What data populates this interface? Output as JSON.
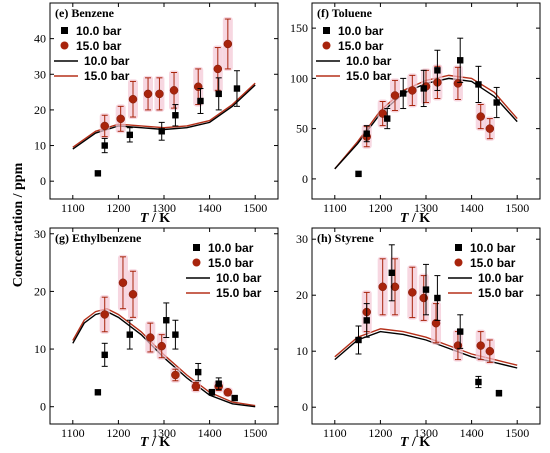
{
  "figure": {
    "ylabel": "Concentration / ppm",
    "xlabel_italic": "T",
    "xlabel_unit": " / K"
  },
  "colors": {
    "exp_10": "#000000",
    "exp_15": "#a8240c",
    "model_10": "#000000",
    "model_15": "#b5301a",
    "glow": "#f4c6d4"
  },
  "chart_data": [
    {
      "id": "benzene",
      "type": "scatter",
      "title": "(e) Benzene",
      "xlim": [
        1050,
        1550
      ],
      "ylim": [
        -5,
        50
      ],
      "xticks": [
        1100,
        1200,
        1300,
        1400,
        1500
      ],
      "yticks": [
        0,
        10,
        20,
        30,
        40
      ],
      "legend": [
        "10.0 bar",
        "15.0 bar",
        "10.0 bar",
        "15.0 bar"
      ],
      "exp_10bar": [
        {
          "x": 1155,
          "y": 2.2,
          "err": 0
        },
        {
          "x": 1170,
          "y": 10,
          "err": 2
        },
        {
          "x": 1225,
          "y": 13,
          "err": 2
        },
        {
          "x": 1295,
          "y": 14,
          "err": 2.5
        },
        {
          "x": 1325,
          "y": 18.5,
          "err": 3
        },
        {
          "x": 1380,
          "y": 22.5,
          "err": 3.5
        },
        {
          "x": 1420,
          "y": 24.5,
          "err": 4.5
        },
        {
          "x": 1460,
          "y": 26,
          "err": 5
        }
      ],
      "exp_15bar": [
        {
          "x": 1170,
          "y": 15.5,
          "err": 3
        },
        {
          "x": 1205,
          "y": 17.5,
          "err": 3.5
        },
        {
          "x": 1232,
          "y": 23,
          "err": 5
        },
        {
          "x": 1265,
          "y": 24.5,
          "err": 4.5
        },
        {
          "x": 1290,
          "y": 24.5,
          "err": 4.5
        },
        {
          "x": 1322,
          "y": 25.5,
          "err": 5
        },
        {
          "x": 1375,
          "y": 26.5,
          "err": 5
        },
        {
          "x": 1418,
          "y": 31.5,
          "err": 6
        },
        {
          "x": 1440,
          "y": 38.5,
          "err": 7
        }
      ],
      "model_10bar": {
        "x": [
          1100,
          1150,
          1200,
          1250,
          1300,
          1350,
          1400,
          1450,
          1500
        ],
        "y": [
          9,
          13.5,
          15.5,
          15,
          14.5,
          15,
          16.5,
          21,
          27
        ]
      },
      "model_15bar": {
        "x": [
          1100,
          1150,
          1200,
          1250,
          1300,
          1350,
          1400,
          1450,
          1500
        ],
        "y": [
          9.5,
          14,
          16,
          15.5,
          15,
          15.5,
          17,
          21.5,
          27.5
        ]
      }
    },
    {
      "id": "toluene",
      "type": "scatter",
      "title": "(f) Toluene",
      "xlim": [
        1050,
        1550
      ],
      "ylim": [
        -20,
        175
      ],
      "xticks": [
        1100,
        1200,
        1300,
        1400,
        1500
      ],
      "yticks": [
        0,
        50,
        100,
        150
      ],
      "legend": [
        "10.0 bar",
        "15.0 bar",
        "10.0 bar",
        "15.0 bar"
      ],
      "exp_10bar": [
        {
          "x": 1152,
          "y": 5,
          "err": 0
        },
        {
          "x": 1170,
          "y": 45,
          "err": 8
        },
        {
          "x": 1215,
          "y": 60,
          "err": 10
        },
        {
          "x": 1250,
          "y": 85,
          "err": 15
        },
        {
          "x": 1295,
          "y": 90,
          "err": 18
        },
        {
          "x": 1325,
          "y": 108,
          "err": 20
        },
        {
          "x": 1375,
          "y": 118,
          "err": 22
        },
        {
          "x": 1415,
          "y": 94,
          "err": 18
        },
        {
          "x": 1455,
          "y": 76,
          "err": 15
        }
      ],
      "exp_15bar": [
        {
          "x": 1170,
          "y": 42,
          "err": 10
        },
        {
          "x": 1205,
          "y": 65,
          "err": 12
        },
        {
          "x": 1232,
          "y": 83,
          "err": 15
        },
        {
          "x": 1270,
          "y": 88,
          "err": 15
        },
        {
          "x": 1300,
          "y": 92,
          "err": 16
        },
        {
          "x": 1325,
          "y": 96,
          "err": 16
        },
        {
          "x": 1370,
          "y": 95,
          "err": 16
        },
        {
          "x": 1420,
          "y": 62,
          "err": 12
        },
        {
          "x": 1440,
          "y": 50,
          "err": 10
        }
      ],
      "model_10bar": {
        "x": [
          1100,
          1150,
          1200,
          1250,
          1300,
          1350,
          1400,
          1450,
          1500
        ],
        "y": [
          10,
          35,
          65,
          85,
          95,
          100,
          97,
          82,
          57
        ]
      },
      "model_15bar": {
        "x": [
          1100,
          1150,
          1200,
          1250,
          1300,
          1350,
          1400,
          1450,
          1500
        ],
        "y": [
          10,
          37,
          68,
          88,
          98,
          103,
          100,
          86,
          60
        ]
      }
    },
    {
      "id": "ethylbenzene",
      "type": "scatter",
      "title": "(g) Ethylbenzene",
      "xlim": [
        1050,
        1550
      ],
      "ylim": [
        -3,
        31
      ],
      "xticks": [
        1100,
        1200,
        1300,
        1400,
        1500
      ],
      "yticks": [
        0,
        10,
        20,
        30
      ],
      "legend": [
        "10.0 bar",
        "15.0 bar",
        "10.0 bar",
        "15.0 bar"
      ],
      "exp_10bar": [
        {
          "x": 1155,
          "y": 2.5,
          "err": 0
        },
        {
          "x": 1170,
          "y": 9,
          "err": 2
        },
        {
          "x": 1225,
          "y": 12.5,
          "err": 2.5
        },
        {
          "x": 1305,
          "y": 15,
          "err": 3
        },
        {
          "x": 1325,
          "y": 12.5,
          "err": 2.5
        },
        {
          "x": 1375,
          "y": 6,
          "err": 1.5
        },
        {
          "x": 1405,
          "y": 2.5,
          "err": 0.5
        },
        {
          "x": 1420,
          "y": 4,
          "err": 1
        },
        {
          "x": 1455,
          "y": 1.5,
          "err": 0.3
        }
      ],
      "exp_15bar": [
        {
          "x": 1170,
          "y": 16,
          "err": 3
        },
        {
          "x": 1210,
          "y": 21.5,
          "err": 4.5
        },
        {
          "x": 1232,
          "y": 19.5,
          "err": 4
        },
        {
          "x": 1270,
          "y": 12,
          "err": 2.5
        },
        {
          "x": 1295,
          "y": 10.5,
          "err": 2
        },
        {
          "x": 1325,
          "y": 5.5,
          "err": 1
        },
        {
          "x": 1370,
          "y": 3.5,
          "err": 0.7
        },
        {
          "x": 1420,
          "y": 3.5,
          "err": 0.7
        },
        {
          "x": 1440,
          "y": 2.5,
          "err": 0.5
        }
      ],
      "model_10bar": {
        "x": [
          1100,
          1125,
          1150,
          1175,
          1200,
          1250,
          1300,
          1350,
          1400,
          1450,
          1500
        ],
        "y": [
          11,
          14.5,
          16,
          16.5,
          15.5,
          12.5,
          8.5,
          5,
          2,
          0.5,
          0
        ]
      },
      "model_15bar": {
        "x": [
          1100,
          1125,
          1150,
          1175,
          1200,
          1250,
          1300,
          1350,
          1400,
          1450,
          1500
        ],
        "y": [
          11.5,
          15,
          16.5,
          17,
          16,
          13,
          9,
          5.5,
          2.5,
          0.8,
          0.2
        ]
      }
    },
    {
      "id": "styrene",
      "type": "scatter",
      "title": "(h) Styrene",
      "xlim": [
        1050,
        1550
      ],
      "ylim": [
        -3,
        32
      ],
      "xticks": [
        1100,
        1200,
        1300,
        1400,
        1500
      ],
      "yticks": [
        0,
        10,
        20,
        30
      ],
      "legend": [
        "10.0 bar",
        "15.0 bar",
        "10.0 bar",
        "15.0 bar"
      ],
      "exp_10bar": [
        {
          "x": 1152,
          "y": 12,
          "err": 2.5
        },
        {
          "x": 1170,
          "y": 15.5,
          "err": 3
        },
        {
          "x": 1225,
          "y": 24,
          "err": 5
        },
        {
          "x": 1300,
          "y": 21,
          "err": 4.5
        },
        {
          "x": 1325,
          "y": 19.5,
          "err": 4
        },
        {
          "x": 1375,
          "y": 13.5,
          "err": 3
        },
        {
          "x": 1415,
          "y": 4.5,
          "err": 1
        },
        {
          "x": 1460,
          "y": 2.5,
          "err": 0.5
        }
      ],
      "exp_15bar": [
        {
          "x": 1170,
          "y": 17,
          "err": 3.5
        },
        {
          "x": 1205,
          "y": 21.5,
          "err": 5
        },
        {
          "x": 1232,
          "y": 21.5,
          "err": 5
        },
        {
          "x": 1270,
          "y": 20.5,
          "err": 4.5
        },
        {
          "x": 1295,
          "y": 19.5,
          "err": 4
        },
        {
          "x": 1322,
          "y": 15,
          "err": 3.5
        },
        {
          "x": 1370,
          "y": 11,
          "err": 2.5
        },
        {
          "x": 1420,
          "y": 11,
          "err": 2.5
        },
        {
          "x": 1440,
          "y": 10,
          "err": 2
        }
      ],
      "model_10bar": {
        "x": [
          1100,
          1150,
          1200,
          1250,
          1300,
          1350,
          1400,
          1450,
          1500
        ],
        "y": [
          8.5,
          12,
          13.5,
          13,
          12,
          10.5,
          9,
          8,
          7
        ]
      },
      "model_15bar": {
        "x": [
          1100,
          1150,
          1200,
          1250,
          1300,
          1350,
          1400,
          1450,
          1500
        ],
        "y": [
          9,
          12.5,
          14,
          13.5,
          12.5,
          11,
          9.5,
          8.5,
          7.5
        ]
      }
    }
  ]
}
